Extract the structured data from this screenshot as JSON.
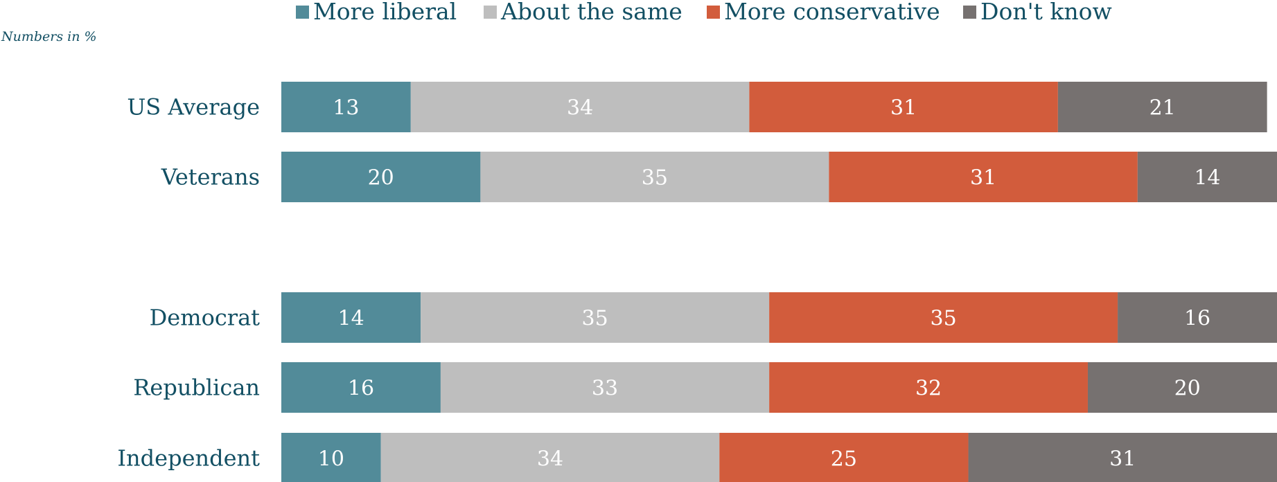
{
  "chart_data": {
    "type": "bar",
    "orientation": "horizontal",
    "stacked": true,
    "note": "Numbers in %",
    "legend_position": "top",
    "grid": false,
    "xlim": [
      0,
      100
    ],
    "categories": [
      "US Average",
      "Veterans",
      "Democrat",
      "Republican",
      "Independent"
    ],
    "groups": [
      [
        "US Average",
        "Veterans"
      ],
      [
        "Democrat",
        "Republican",
        "Independent"
      ]
    ],
    "series": [
      {
        "name": "More liberal",
        "color": "#528b99",
        "values": [
          13,
          20,
          14,
          16,
          10
        ]
      },
      {
        "name": "About the same",
        "color": "#bebebe",
        "values": [
          34,
          35,
          35,
          33,
          34
        ]
      },
      {
        "name": "More conservative",
        "color": "#d25c3c",
        "values": [
          31,
          31,
          35,
          32,
          25
        ]
      },
      {
        "name": "Don't know",
        "color": "#767170",
        "values": [
          21,
          14,
          16,
          20,
          31
        ]
      }
    ]
  }
}
